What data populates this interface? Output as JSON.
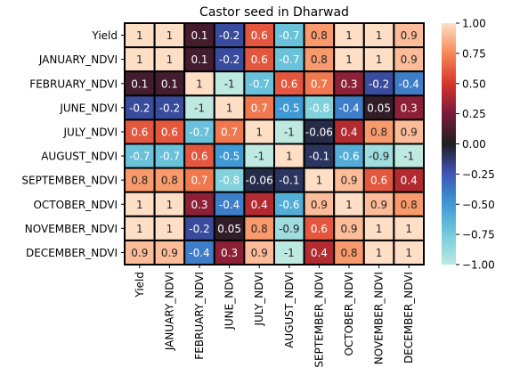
{
  "chart_data": {
    "type": "heatmap",
    "title": "Castor seed in Dharwad",
    "xlabel": "",
    "ylabel": "",
    "rows": [
      "Yield",
      "JANUARY_NDVI",
      "FEBRUARY_NDVI",
      "JUNE_NDVI",
      "JULY_NDVI",
      "AUGUST_NDVI",
      "SEPTEMBER_NDVI",
      "OCTOBER_NDVI",
      "NOVEMBER_NDVI",
      "DECEMBER_NDVI"
    ],
    "columns": [
      "Yield",
      "JANUARY_NDVI",
      "FEBRUARY_NDVI",
      "JUNE_NDVI",
      "JULY_NDVI",
      "AUGUST_NDVI",
      "SEPTEMBER_NDVI",
      "OCTOBER_NDVI",
      "NOVEMBER_NDVI",
      "DECEMBER_NDVI"
    ],
    "cell_labels": [
      [
        "1",
        "1",
        "0.1",
        "-0.2",
        "0.6",
        "-0.7",
        "0.8",
        "1",
        "1",
        "0.9"
      ],
      [
        "1",
        "1",
        "0.1",
        "-0.2",
        "0.6",
        "-0.7",
        "0.8",
        "1",
        "1",
        "0.9"
      ],
      [
        "0.1",
        "0.1",
        "1",
        "-1",
        "-0.7",
        "0.6",
        "0.7",
        "0.3",
        "-0.2",
        "-0.4"
      ],
      [
        "-0.2",
        "-0.2",
        "-1",
        "1",
        "0.7",
        "-0.5",
        "-0.8",
        "-0.4",
        "0.05",
        "0.3"
      ],
      [
        "0.6",
        "0.6",
        "-0.7",
        "0.7",
        "1",
        "-1",
        "-0.06",
        "0.4",
        "0.8",
        "0.9"
      ],
      [
        "-0.7",
        "-0.7",
        "0.6",
        "-0.5",
        "-1",
        "1",
        "-0.1",
        "-0.6",
        "-0.9",
        "-1"
      ],
      [
        "0.8",
        "0.8",
        "0.7",
        "-0.8",
        "-0.06",
        "-0.1",
        "1",
        "0.9",
        "0.6",
        "0.4"
      ],
      [
        "1",
        "1",
        "0.3",
        "-0.4",
        "0.4",
        "-0.6",
        "0.9",
        "1",
        "0.9",
        "0.8"
      ],
      [
        "1",
        "1",
        "-0.2",
        "0.05",
        "0.8",
        "-0.9",
        "0.6",
        "0.9",
        "1",
        "1"
      ],
      [
        "0.9",
        "0.9",
        "-0.4",
        "0.3",
        "0.9",
        "-1",
        "0.4",
        "0.8",
        "1",
        "1"
      ]
    ],
    "values": [
      [
        1.0,
        1.0,
        0.1,
        -0.2,
        0.6,
        -0.7,
        0.8,
        1.0,
        1.0,
        0.9
      ],
      [
        1.0,
        1.0,
        0.1,
        -0.2,
        0.6,
        -0.7,
        0.8,
        1.0,
        1.0,
        0.9
      ],
      [
        0.1,
        0.1,
        1.0,
        -1.0,
        -0.7,
        0.6,
        0.7,
        0.3,
        -0.2,
        -0.4
      ],
      [
        -0.2,
        -0.2,
        -1.0,
        1.0,
        0.7,
        -0.5,
        -0.8,
        -0.4,
        0.05,
        0.3
      ],
      [
        0.6,
        0.6,
        -0.7,
        0.7,
        1.0,
        -1.0,
        -0.06,
        0.4,
        0.8,
        0.9
      ],
      [
        -0.7,
        -0.7,
        0.6,
        -0.5,
        -1.0,
        1.0,
        -0.1,
        -0.6,
        -0.9,
        -1.0
      ],
      [
        0.8,
        0.8,
        0.7,
        -0.8,
        -0.06,
        -0.1,
        1.0,
        0.9,
        0.6,
        0.4
      ],
      [
        1.0,
        1.0,
        0.3,
        -0.4,
        0.4,
        -0.6,
        0.9,
        1.0,
        0.9,
        0.8
      ],
      [
        1.0,
        1.0,
        -0.2,
        0.05,
        0.8,
        -0.9,
        0.6,
        0.9,
        1.0,
        1.0
      ],
      [
        0.9,
        0.9,
        -0.4,
        0.3,
        0.9,
        -1.0,
        0.4,
        0.8,
        1.0,
        1.0
      ]
    ],
    "vmin": -1.0,
    "vmax": 1.0,
    "colormap": "icefire",
    "colorbar_ticks": [
      1.0,
      0.75,
      0.5,
      0.25,
      0.0,
      -0.25,
      -0.5,
      -0.75,
      -1.0
    ],
    "colorbar_tick_labels": [
      "1.00",
      "0.75",
      "0.50",
      "0.25",
      "0.00",
      "−0.25",
      "−0.50",
      "−0.75",
      "−1.00"
    ],
    "cell_border_color": "#000000",
    "grid": false,
    "legend": "colorbar-right"
  }
}
